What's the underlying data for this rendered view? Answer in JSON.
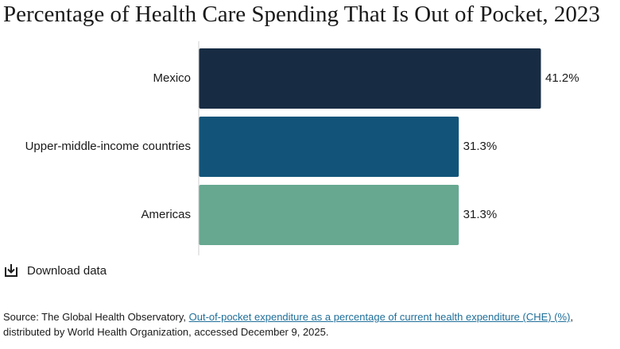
{
  "chart_data": {
    "type": "bar",
    "orientation": "horizontal",
    "title": "Percentage of Health Care Spending That Is Out of Pocket, 2023",
    "categories": [
      "Mexico",
      "Upper-middle-income countries",
      "Americas"
    ],
    "values": [
      41.2,
      31.3,
      31.3
    ],
    "value_labels": [
      "41.2%",
      "31.3%",
      "31.3%"
    ],
    "colors": [
      "#172c43",
      "#125479",
      "#67a891"
    ],
    "xlim": [
      0,
      41.2
    ],
    "grid": false,
    "legend": "none"
  },
  "download": {
    "label": "Download data",
    "icon": "download-icon"
  },
  "source": {
    "prefix": "Source: The Global Health Observatory, ",
    "link_text": "Out-of-pocket expenditure as a percentage of current health expenditure (CHE) (%)",
    "suffix": ", distributed by World Health Organization, accessed December 9, 2025."
  }
}
